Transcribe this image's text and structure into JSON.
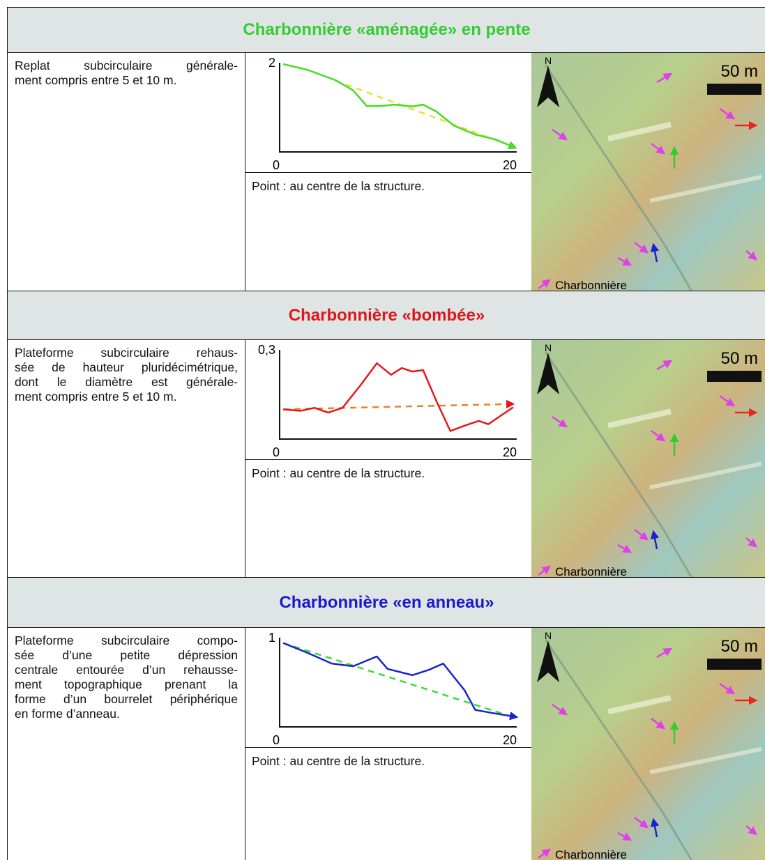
{
  "sections": [
    {
      "title": "Charbonnière «aménagée» en pente",
      "title_color": "#33cc33",
      "description": [
        "Replat subcirculaire générale-",
        "ment compris entre 5 et 10 m."
      ],
      "profile": {
        "type": "line",
        "xlim": [
          0,
          20
        ],
        "ylim": [
          0,
          2
        ],
        "xticks": [
          0,
          20
        ],
        "yticks": [
          2
        ],
        "x": [
          0.3,
          2.35,
          4.7,
          6.2,
          7.35,
          8.5,
          9.7,
          11.2,
          12.1,
          13.2,
          14.7,
          16.5,
          18.2,
          19.9
        ],
        "values": [
          1.97,
          1.84,
          1.61,
          1.38,
          1.03,
          1.03,
          1.06,
          1.02,
          1.06,
          0.91,
          0.59,
          0.39,
          0.28,
          0.09
        ],
        "color": "#44dd22",
        "trend": {
          "x": [
            4.7,
            19.9
          ],
          "values": [
            1.6,
            0.1
          ],
          "color": "#f0dc30"
        }
      },
      "note": "Point : au centre de la structure.",
      "map": {
        "north": "N",
        "scale": "50 m",
        "legend": "Charbonnière"
      }
    },
    {
      "title": "Charbonnière «bombée»",
      "title_color": "#e0161c",
      "description": [
        "Plateforme subcirculaire rehaus-",
        "sée de hauteur pluridécimétrique,",
        "dont le diamètre est générale-",
        "ment compris entre 5 et 10 m."
      ],
      "profile": {
        "type": "line",
        "xlim": [
          0,
          20
        ],
        "ylim": [
          0,
          0.3
        ],
        "xticks": [
          0,
          20
        ],
        "yticks": [
          {
            "value": 0.3,
            "label": "0,3"
          }
        ],
        "x": [
          0.3,
          1.76,
          2.94,
          4.1,
          5.3,
          6.8,
          8.2,
          9.4,
          10.3,
          11.2,
          12.1,
          13.2,
          14.4,
          15.6,
          16.8,
          17.6,
          19.7
        ],
        "values": [
          0.1,
          0.095,
          0.105,
          0.089,
          0.105,
          0.18,
          0.255,
          0.216,
          0.239,
          0.227,
          0.232,
          0.13,
          0.027,
          0.045,
          0.061,
          0.05,
          0.107
        ],
        "color": "#e8161c",
        "trend": {
          "x": [
            0.3,
            19.7
          ],
          "values": [
            0.1,
            0.118
          ],
          "color": "#f08020"
        }
      },
      "note": "Point : au centre de la structure.",
      "map": {
        "north": "N",
        "scale": "50 m",
        "legend": "Charbonnière"
      }
    },
    {
      "title": "Charbonnière «en anneau»",
      "title_color": "#1a1acc",
      "description": [
        "Plateforme subcirculaire compo-",
        "sée d’une petite dépression",
        "centrale entourée d’un rehausse-",
        "ment topographique prenant la",
        "forme d’un bourrelet périphérique",
        "en forme d’anneau."
      ],
      "profile": {
        "type": "line",
        "xlim": [
          0,
          20
        ],
        "ylim": [
          0,
          1
        ],
        "xticks": [
          0,
          20
        ],
        "yticks": [
          1
        ],
        "x": [
          0.3,
          2.35,
          4.4,
          6.2,
          8.2,
          9.1,
          11.2,
          12.6,
          13.8,
          15.6,
          16.5,
          18.2,
          20
        ],
        "values": [
          0.94,
          0.83,
          0.71,
          0.68,
          0.79,
          0.65,
          0.58,
          0.64,
          0.71,
          0.41,
          0.19,
          0.15,
          0.11
        ],
        "color": "#1a22cc",
        "trend": {
          "x": [
            0.3,
            19.7
          ],
          "values": [
            0.94,
            0.11
          ],
          "color": "#33dd33"
        }
      },
      "note": "Point : au centre de la structure.",
      "map": {
        "north": "N",
        "scale": "50 m",
        "legend": "Charbonnière"
      }
    }
  ]
}
